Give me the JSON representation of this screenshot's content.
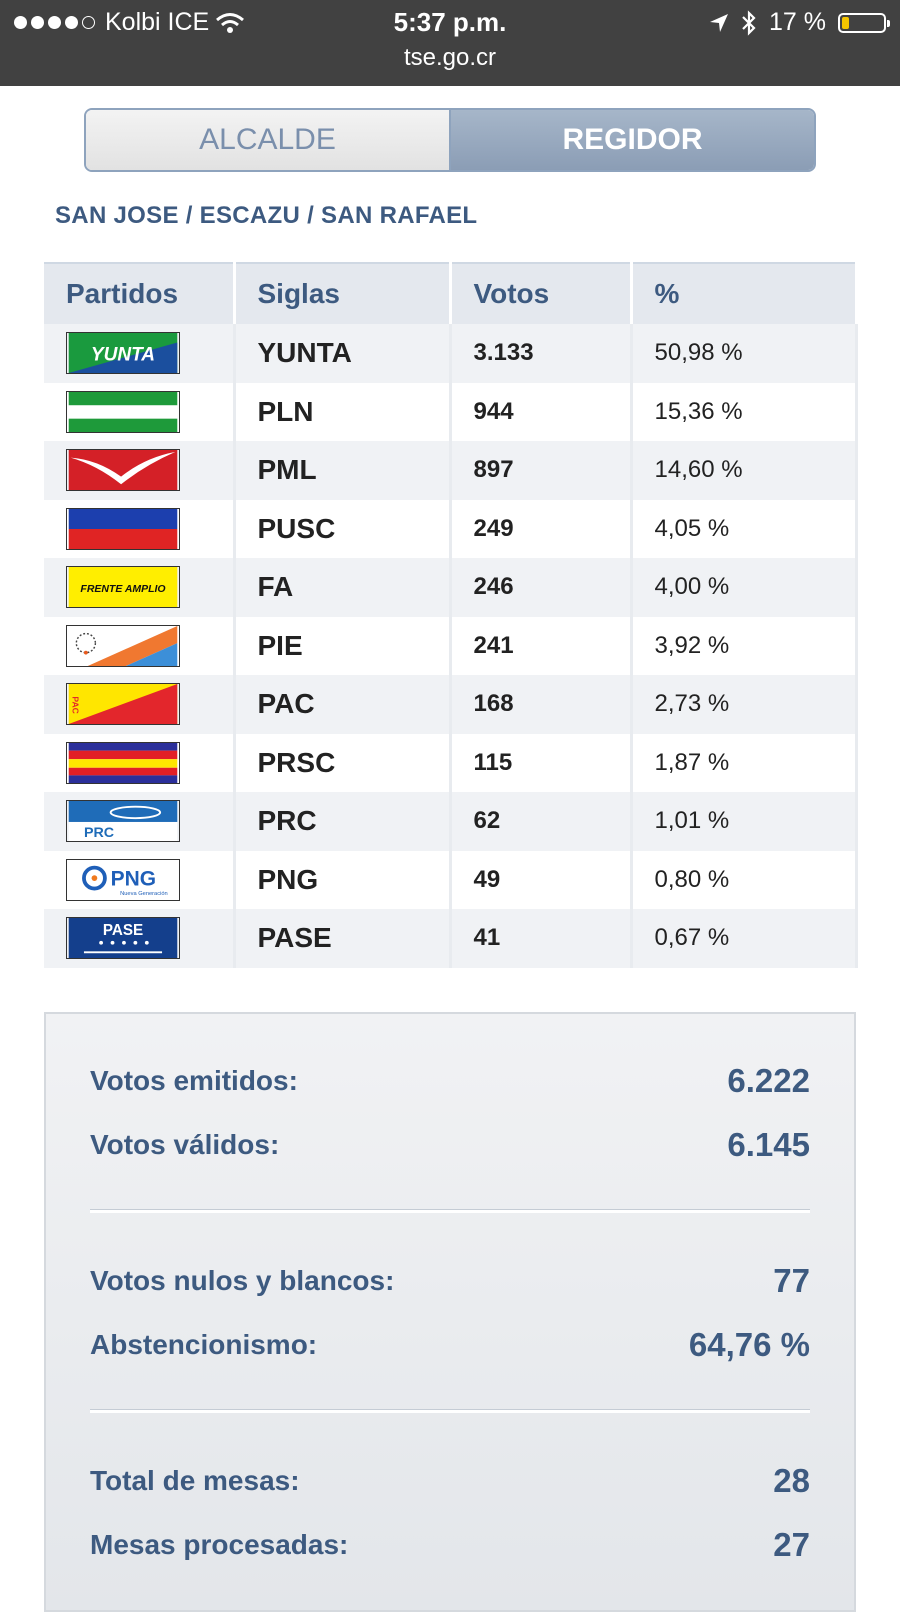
{
  "status_bar": {
    "carrier": "Kolbi ICE",
    "time": "5:37 p.m.",
    "url": "tse.go.cr",
    "battery": "17 %",
    "battery_level": 0.17
  },
  "tabs": [
    {
      "label": "ALCALDE",
      "active": false
    },
    {
      "label": "REGIDOR",
      "active": true
    }
  ],
  "breadcrumb": "SAN JOSE / ESCAZU / SAN RAFAEL",
  "table": {
    "headers": [
      "Partidos",
      "Siglas",
      "Votos",
      "%"
    ],
    "rows": [
      {
        "logo": "yunta-flag",
        "sigla": "YUNTA",
        "votos": "3.133",
        "pct": "50,98 %"
      },
      {
        "logo": "pln-flag",
        "sigla": "PLN",
        "votos": "944",
        "pct": "15,36 %"
      },
      {
        "logo": "pml-flag",
        "sigla": "PML",
        "votos": "897",
        "pct": "14,60 %"
      },
      {
        "logo": "pusc-flag",
        "sigla": "PUSC",
        "votos": "249",
        "pct": "4,05 %"
      },
      {
        "logo": "fa-flag",
        "sigla": "FA",
        "votos": "246",
        "pct": "4,00 %"
      },
      {
        "logo": "pie-flag",
        "sigla": "PIE",
        "votos": "241",
        "pct": "3,92 %"
      },
      {
        "logo": "pac-flag",
        "sigla": "PAC",
        "votos": "168",
        "pct": "2,73 %"
      },
      {
        "logo": "prsc-flag",
        "sigla": "PRSC",
        "votos": "115",
        "pct": "1,87 %"
      },
      {
        "logo": "prc-flag",
        "sigla": "PRC",
        "votos": "62",
        "pct": "1,01 %"
      },
      {
        "logo": "png-flag",
        "sigla": "PNG",
        "votos": "49",
        "pct": "0,80 %"
      },
      {
        "logo": "pase-flag",
        "sigla": "PASE",
        "votos": "41",
        "pct": "0,67 %"
      }
    ]
  },
  "logo_text": {
    "yunta": "YUNTA",
    "fa": "FRENTE AMPLIO",
    "prc": "PRC",
    "png": "PNG",
    "png_sub": "Nueva Generación",
    "pase": "PASE",
    "pac": "PAC"
  },
  "summary": {
    "emitidos_label": "Votos emitidos:",
    "emitidos_value": "6.222",
    "validos_label": "Votos válidos:",
    "validos_value": "6.145",
    "nulos_label": "Votos nulos y blancos:",
    "nulos_value": "77",
    "abst_label": "Abstencionismo:",
    "abst_value": "64,76 %",
    "mesas_label": "Total de mesas:",
    "mesas_value": "28",
    "procesadas_label": "Mesas procesadas:",
    "procesadas_value": "27"
  },
  "colors": {
    "accent": "#3d5a80",
    "status_bar": "#414141",
    "tab_active": "#8b9db5"
  }
}
